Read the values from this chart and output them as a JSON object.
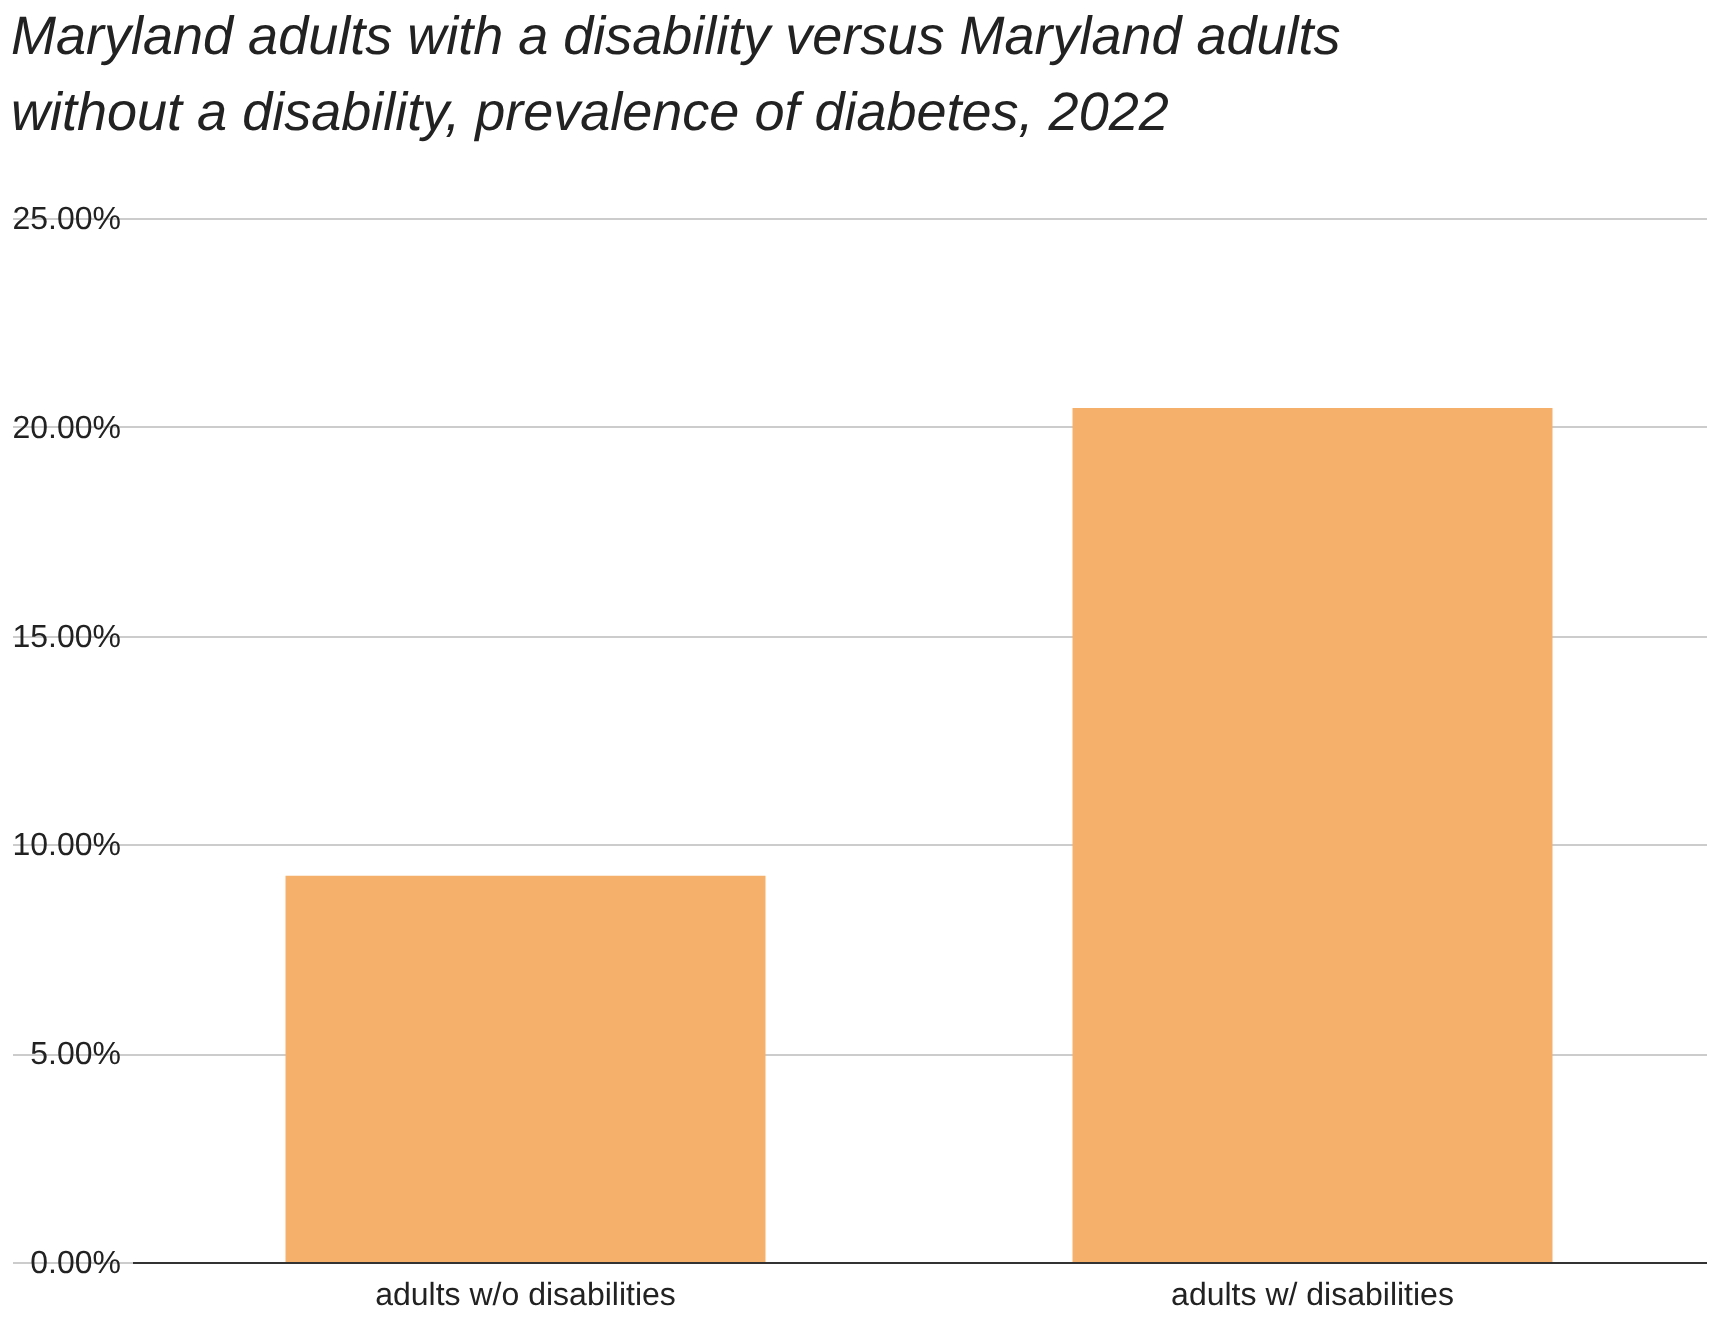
{
  "chart_data": {
    "type": "bar",
    "title": "Maryland adults with a disability versus Maryland adults without a disability, prevalence of diabetes, 2022",
    "categories": [
      "adults w/o disabilities",
      "adults w/ disabilities"
    ],
    "values": [
      9.25,
      20.45
    ],
    "color": "#f5b16c",
    "ylim": [
      0,
      25
    ],
    "yticks": [
      {
        "value": 0,
        "label": "0.00%"
      },
      {
        "value": 5,
        "label": "5.00%"
      },
      {
        "value": 10,
        "label": "10.00%"
      },
      {
        "value": 15,
        "label": "15.00%"
      },
      {
        "value": 20,
        "label": "20.00%"
      },
      {
        "value": 25,
        "label": "25.00%"
      }
    ],
    "grid": "y"
  }
}
